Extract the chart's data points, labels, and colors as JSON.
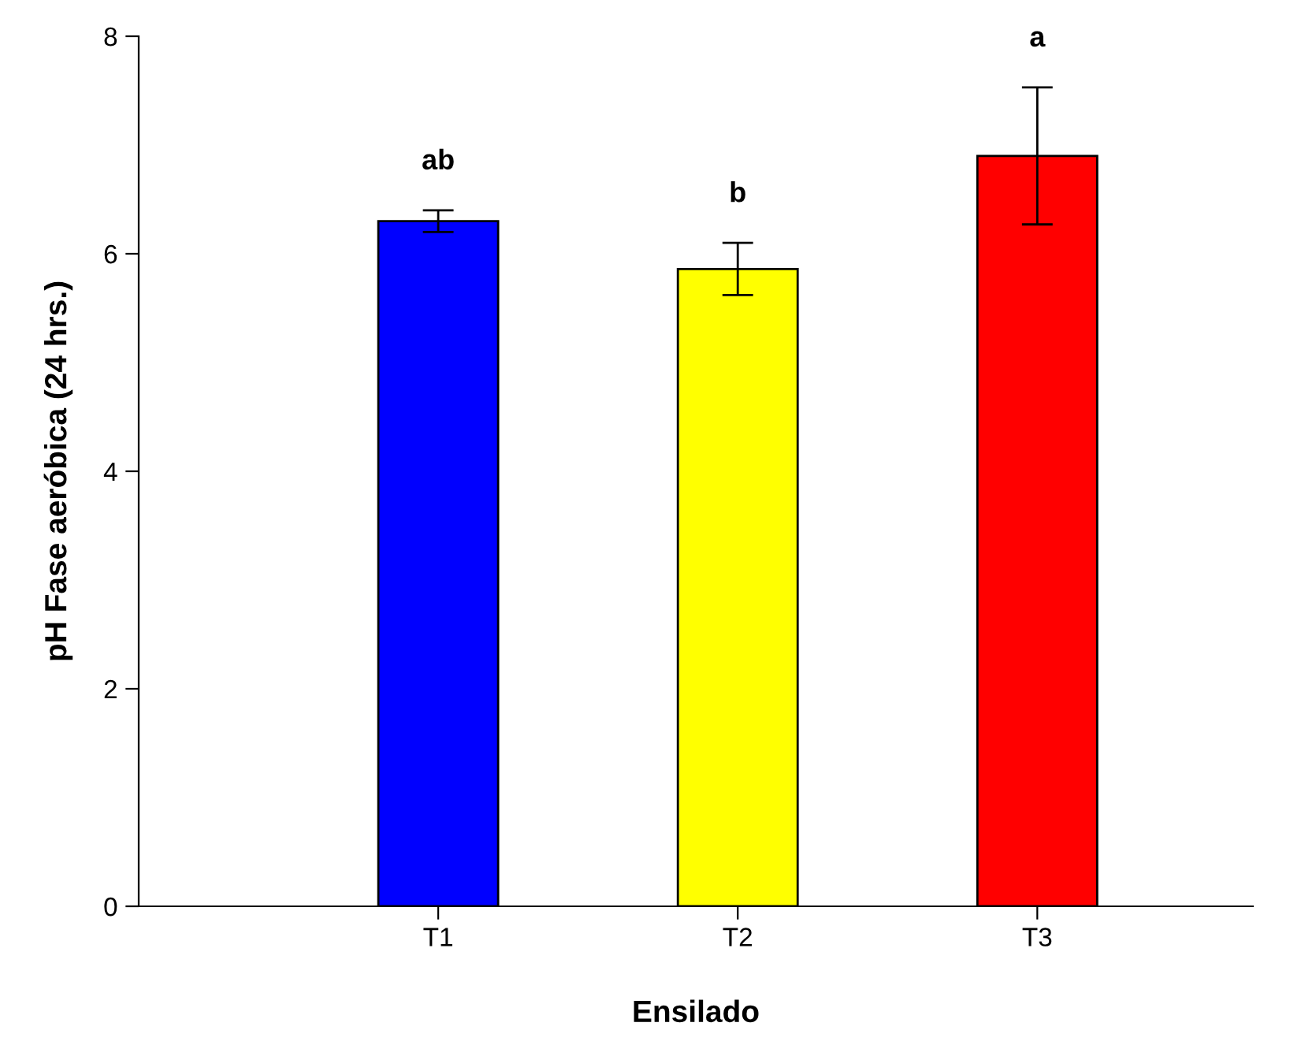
{
  "chart_data": {
    "type": "bar",
    "xlabel": "Ensilado",
    "ylabel": "pH Fase aeróbica (24 hrs.)",
    "categories": [
      "T1",
      "T2",
      "T3"
    ],
    "values": [
      6.3,
      5.86,
      6.9
    ],
    "errors": [
      0.1,
      0.24,
      0.63
    ],
    "colors": [
      "#0000ff",
      "#ffff00",
      "#ff0000"
    ],
    "ylim": [
      0,
      8
    ],
    "yticks": [
      0,
      2,
      4,
      6,
      8
    ],
    "grid": false,
    "legend": false,
    "annotations": [
      "ab",
      "b",
      "a"
    ]
  }
}
